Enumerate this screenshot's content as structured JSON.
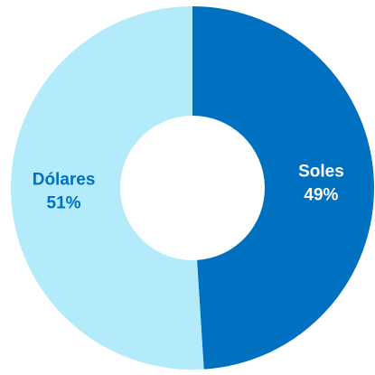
{
  "chart_data": {
    "type": "pie",
    "donut": true,
    "categories": [
      "Soles",
      "Dólares"
    ],
    "values": [
      49,
      51
    ],
    "value_labels": [
      "49%",
      "51%"
    ],
    "colors": [
      "#0070c0",
      "#b3ebfb"
    ],
    "label_colors": [
      "#ffffff",
      "#0070c0"
    ]
  }
}
